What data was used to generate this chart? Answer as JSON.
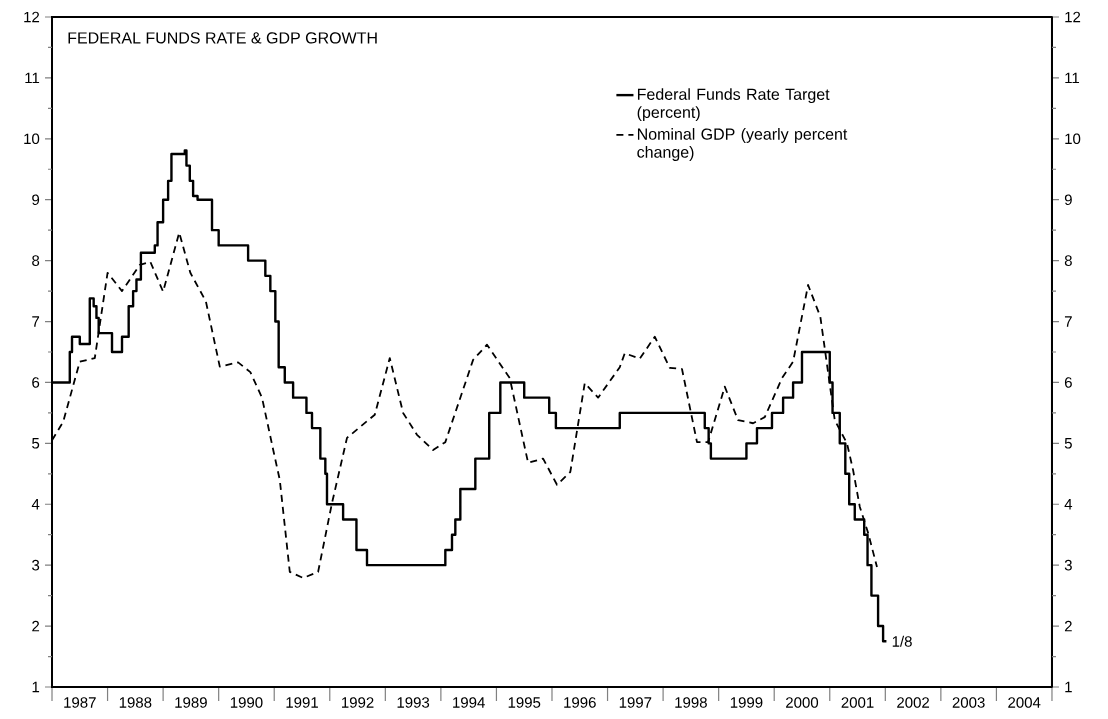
{
  "chart_data": {
    "type": "line",
    "title": "FEDERAL FUNDS RATE & GDP GROWTH",
    "series": [
      {
        "name": "Federal Funds Rate Target (percent)",
        "type": "step",
        "color": "#000000",
        "line_style": "solid",
        "x": [
          1987.0,
          1987.32,
          1987.36,
          1987.5,
          1987.68,
          1987.75,
          1987.8,
          1987.84,
          1988.08,
          1988.26,
          1988.38,
          1988.46,
          1988.52,
          1988.6,
          1988.85,
          1988.9,
          1989.0,
          1989.09,
          1989.15,
          1989.39,
          1989.42,
          1989.48,
          1989.54,
          1989.62,
          1989.88,
          1990.0,
          1990.53,
          1990.84,
          1990.93,
          1991.02,
          1991.08,
          1991.19,
          1991.34,
          1991.58,
          1991.68,
          1991.83,
          1991.92,
          1991.95,
          1992.24,
          1992.48,
          1992.67,
          1994.08,
          1994.2,
          1994.26,
          1994.35,
          1994.62,
          1994.87,
          1995.07,
          1995.5,
          1995.95,
          1996.07,
          1997.22,
          1998.75,
          1998.82,
          1998.86,
          1999.5,
          1999.69,
          1999.96,
          2000.16,
          2000.34,
          2000.5,
          2001.0,
          2001.05,
          2001.18,
          2001.28,
          2001.35,
          2001.45,
          2001.62,
          2001.68,
          2001.75,
          2001.87,
          2001.96,
          2002.02
        ],
        "values": [
          6.0,
          6.5,
          6.75,
          6.63,
          7.38,
          7.25,
          7.06,
          6.81,
          6.5,
          6.75,
          7.25,
          7.5,
          7.69,
          8.13,
          8.25,
          8.63,
          9.0,
          9.31,
          9.75,
          9.81,
          9.56,
          9.31,
          9.06,
          9.0,
          8.5,
          8.25,
          8.0,
          7.75,
          7.5,
          7.0,
          6.25,
          6.0,
          5.75,
          5.5,
          5.25,
          4.75,
          4.5,
          4.0,
          3.75,
          3.25,
          3.0,
          3.25,
          3.5,
          3.75,
          4.25,
          4.75,
          5.5,
          6.0,
          5.75,
          5.5,
          5.25,
          5.5,
          5.25,
          5.0,
          4.75,
          5.0,
          5.25,
          5.5,
          5.75,
          6.0,
          6.5,
          6.0,
          5.5,
          5.0,
          4.5,
          4.0,
          3.75,
          3.5,
          3.0,
          2.5,
          2.0,
          1.75,
          1.75
        ]
      },
      {
        "name": "Nominal GDP (yearly percent change)",
        "color": "#000000",
        "line_style": "dashed",
        "x": [
          1987.0,
          1987.2,
          1987.5,
          1987.77,
          1988.0,
          1988.26,
          1988.58,
          1988.77,
          1989.0,
          1989.29,
          1989.49,
          1989.77,
          1990.02,
          1990.35,
          1990.57,
          1990.78,
          1990.98,
          1991.1,
          1991.28,
          1991.52,
          1991.79,
          1992.04,
          1992.31,
          1992.81,
          1993.08,
          1993.32,
          1993.57,
          1993.86,
          1994.08,
          1994.58,
          1994.83,
          1995.24,
          1995.57,
          1995.84,
          1996.09,
          1996.33,
          1996.59,
          1996.83,
          1997.22,
          1997.31,
          1997.58,
          1997.85,
          1998.12,
          1998.34,
          1998.61,
          1998.81,
          1999.11,
          1999.35,
          1999.62,
          1999.83,
          2000.14,
          2000.34,
          2000.61,
          2000.83,
          2001.09,
          2001.31,
          2001.42,
          2001.54,
          2001.69,
          2001.85
        ],
        "values": [
          5.05,
          5.35,
          6.34,
          6.4,
          7.8,
          7.5,
          7.93,
          7.98,
          7.49,
          8.46,
          7.8,
          7.33,
          6.26,
          6.33,
          6.17,
          5.75,
          4.9,
          4.4,
          2.89,
          2.79,
          2.89,
          4.02,
          5.09,
          5.47,
          6.4,
          5.5,
          5.14,
          4.89,
          5.02,
          6.37,
          6.62,
          6.07,
          4.68,
          4.75,
          4.32,
          4.53,
          5.99,
          5.75,
          6.25,
          6.48,
          6.39,
          6.75,
          6.24,
          6.22,
          5.02,
          5.02,
          5.93,
          5.38,
          5.33,
          5.43,
          6.07,
          6.34,
          7.6,
          7.08,
          5.38,
          5.0,
          4.56,
          3.96,
          3.53,
          2.97
        ]
      }
    ],
    "xlim": [
      1987,
      2005
    ],
    "xticks": [
      {
        "value": 1987.5,
        "label": "1987"
      },
      {
        "value": 1988.5,
        "label": "1988"
      },
      {
        "value": 1989.5,
        "label": "1989"
      },
      {
        "value": 1990.5,
        "label": "1990"
      },
      {
        "value": 1991.5,
        "label": "1991"
      },
      {
        "value": 1992.5,
        "label": "1992"
      },
      {
        "value": 1993.5,
        "label": "1993"
      },
      {
        "value": 1994.5,
        "label": "1994"
      },
      {
        "value": 1995.5,
        "label": "1995"
      },
      {
        "value": 1996.5,
        "label": "1996"
      },
      {
        "value": 1997.5,
        "label": "1997"
      },
      {
        "value": 1998.5,
        "label": "1998"
      },
      {
        "value": 1999.5,
        "label": "1999"
      },
      {
        "value": 2000.5,
        "label": "2000"
      },
      {
        "value": 2001.5,
        "label": "2001"
      },
      {
        "value": 2002.5,
        "label": "2002"
      },
      {
        "value": 2003.5,
        "label": "2003"
      },
      {
        "value": 2004.5,
        "label": "2004"
      },
      {
        "value": 1987,
        "label": null
      },
      {
        "value": 1988,
        "label": null
      },
      {
        "value": 1989,
        "label": null
      },
      {
        "value": 1990,
        "label": null
      },
      {
        "value": 1991,
        "label": null
      },
      {
        "value": 1992,
        "label": null
      },
      {
        "value": 1993,
        "label": null
      },
      {
        "value": 1994,
        "label": null
      },
      {
        "value": 1995,
        "label": null
      },
      {
        "value": 1996,
        "label": null
      },
      {
        "value": 1997,
        "label": null
      },
      {
        "value": 1998,
        "label": null
      },
      {
        "value": 1999,
        "label": null
      },
      {
        "value": 2000,
        "label": null
      },
      {
        "value": 2001,
        "label": null
      },
      {
        "value": 2002,
        "label": null
      },
      {
        "value": 2003,
        "label": null
      },
      {
        "value": 2004,
        "label": null
      },
      {
        "value": 2005,
        "label": null
      }
    ],
    "ylim": [
      1,
      12
    ],
    "yticks": [
      1,
      2,
      3,
      4,
      5,
      6,
      7,
      8,
      9,
      10,
      11,
      12,
      {
        "value": 1.5,
        "label": null
      },
      {
        "value": 2.5,
        "label": null
      },
      {
        "value": 3.5,
        "label": null
      },
      {
        "value": 4.5,
        "label": null
      },
      {
        "value": 5.5,
        "label": null
      },
      {
        "value": 6.5,
        "label": null
      },
      {
        "value": 7.5,
        "label": null
      },
      {
        "value": 8.5,
        "label": null
      },
      {
        "value": 9.5,
        "label": null
      },
      {
        "value": 10.5,
        "label": null
      },
      {
        "value": 11.5,
        "label": null
      }
    ],
    "y2lim": [
      1,
      12
    ],
    "y2ticks": [
      1,
      2,
      3,
      4,
      5,
      6,
      7,
      8,
      9,
      10,
      11,
      12,
      {
        "value": 1.5,
        "label": null
      },
      {
        "value": 2.5,
        "label": null
      },
      {
        "value": 3.5,
        "label": null
      },
      {
        "value": 4.5,
        "label": null
      },
      {
        "value": 5.5,
        "label": null
      },
      {
        "value": 6.5,
        "label": null
      },
      {
        "value": 7.5,
        "label": null
      },
      {
        "value": 8.5,
        "label": null
      },
      {
        "value": 9.5,
        "label": null
      },
      {
        "value": 10.5,
        "label": null
      },
      {
        "value": 11.5,
        "label": null
      }
    ],
    "annotations": [
      {
        "text": "1/8",
        "x": 2002.02,
        "y": 1.75
      }
    ],
    "legend": "top right",
    "grid": false,
    "marker": "none"
  }
}
